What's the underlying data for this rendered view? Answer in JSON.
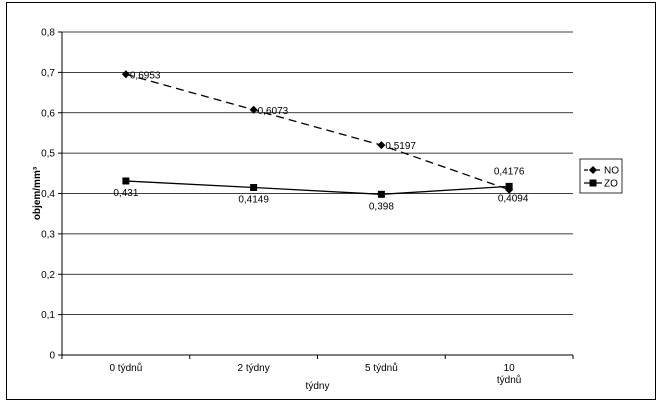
{
  "chart_data": {
    "type": "line",
    "categories": [
      "0 týdnů",
      "2 týdny",
      "5 týdnů",
      "10 týdnů"
    ],
    "category_lines": [
      [
        "0 týdnů"
      ],
      [
        "2 týdny"
      ],
      [
        "5 týdnů"
      ],
      [
        "10",
        "týdnů"
      ]
    ],
    "series": [
      {
        "name": "NO",
        "values": [
          0.6953,
          0.6073,
          0.5197,
          0.4094
        ],
        "labels": [
          "0,6953",
          "0,6073",
          "0,5197",
          "0,4094"
        ],
        "marker": "diamond",
        "line_style": "dashed"
      },
      {
        "name": "ZO",
        "values": [
          0.431,
          0.4149,
          0.398,
          0.4176
        ],
        "labels": [
          "0,431",
          "0,4149",
          "0,398",
          "0,4176"
        ],
        "marker": "square",
        "line_style": "solid"
      }
    ],
    "xlabel": "týdny",
    "ylabel": "objem/mm³",
    "ylim": [
      0,
      0.8
    ],
    "yticks": [
      0,
      0.1,
      0.2,
      0.3,
      0.4,
      0.5,
      0.6,
      0.7,
      0.8
    ],
    "ytick_labels": [
      "0",
      "0,1",
      "0,2",
      "0,3",
      "0,4",
      "0,5",
      "0,6",
      "0,7",
      "0,8"
    ],
    "grid": true,
    "legend_position": "right",
    "colors": {
      "line": "#000000",
      "grid": "#000000",
      "background": "#ffffff"
    }
  }
}
